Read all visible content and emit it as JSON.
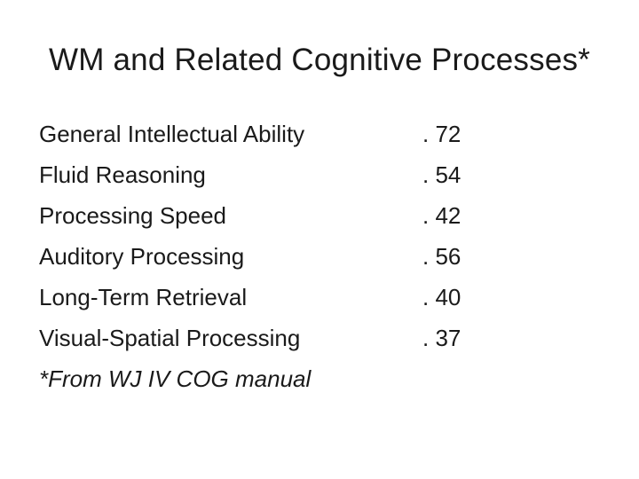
{
  "slide": {
    "title": "WM and Related Cognitive Processes*",
    "rows": [
      {
        "label": "General Intellectual Ability",
        "value": ". 72"
      },
      {
        "label": "Fluid Reasoning",
        "value": ". 54"
      },
      {
        "label": "Processing Speed",
        "value": ". 42"
      },
      {
        "label": "Auditory Processing",
        "value": ". 56"
      },
      {
        "label": "Long-Term Retrieval",
        "value": ". 40"
      },
      {
        "label": "Visual-Spatial Processing",
        "value": ". 37"
      }
    ],
    "footnote": "*From WJ IV COG manual"
  }
}
